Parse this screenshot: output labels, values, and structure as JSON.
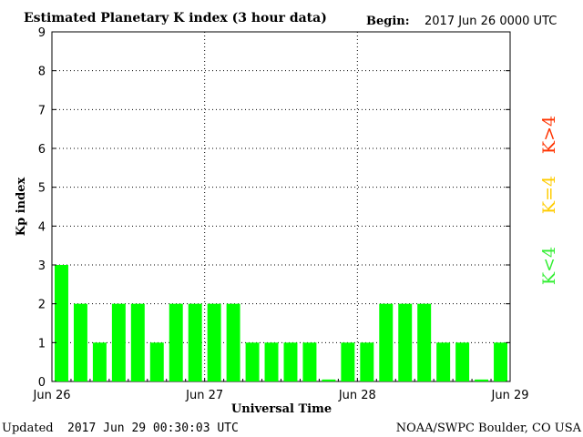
{
  "header": {
    "title": "Estimated Planetary K index (3 hour data)",
    "begin_label": "Begin:",
    "begin_value": "2017 Jun 26 0000 UTC"
  },
  "footer": {
    "updated_label": "Updated",
    "updated_value": "2017 Jun 29 00:30:03 UTC",
    "credit": "NOAA/SWPC Boulder, CO USA"
  },
  "legend": [
    {
      "label": "K>4",
      "color": "#ff3300"
    },
    {
      "label": "K=4",
      "color": "#ffcc00"
    },
    {
      "label": "K<4",
      "color": "#33ee33"
    }
  ],
  "chart_data": {
    "type": "bar",
    "title": "Estimated Planetary K index (3 hour data)",
    "xlabel": "Universal Time",
    "ylabel": "Kp index",
    "ylim": [
      0,
      9
    ],
    "yticks": [
      "0",
      "1",
      "2",
      "3",
      "4",
      "5",
      "6",
      "7",
      "8",
      "9"
    ],
    "xticks": [
      "Jun 26",
      "Jun 27",
      "Jun 28",
      "Jun 29"
    ],
    "grid": "dotted",
    "bar_color": "#00ff00",
    "values": [
      3,
      2,
      1,
      2,
      2,
      1,
      2,
      2,
      2,
      2,
      1,
      1,
      1,
      1,
      0.05,
      1,
      1,
      2,
      2,
      2,
      1,
      1,
      0.05,
      1
    ]
  }
}
